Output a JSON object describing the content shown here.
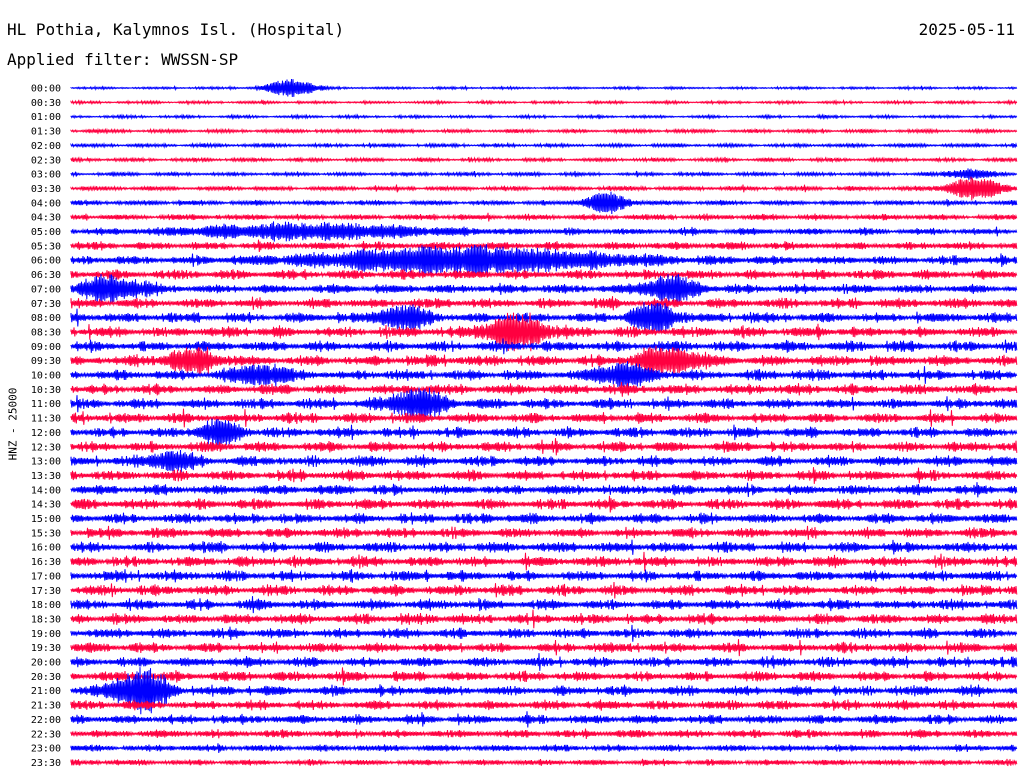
{
  "header": {
    "station": "HL Pothia, Kalymnos Isl. (Hospital)",
    "date": "2025-05-11",
    "filter": "Applied filter: WWSSN-SP"
  },
  "colors": {
    "even_trace": "#0000ff",
    "odd_trace": "#ff0040",
    "text": "#000000",
    "background": "#ffffff"
  },
  "chart_data": {
    "type": "line",
    "ylabel": "HNZ - 25000",
    "row_labels": [
      "00:00",
      "00:30",
      "01:00",
      "01:30",
      "02:00",
      "02:30",
      "03:00",
      "03:30",
      "04:00",
      "04:30",
      "05:00",
      "05:30",
      "06:00",
      "06:30",
      "07:00",
      "07:30",
      "08:00",
      "08:30",
      "09:00",
      "09:30",
      "10:00",
      "10:30",
      "11:00",
      "11:30",
      "12:00",
      "12:30",
      "13:00",
      "13:30",
      "14:00",
      "14:30",
      "15:00",
      "15:30",
      "16:00",
      "16:30",
      "17:00",
      "17:30",
      "18:00",
      "18:30",
      "19:00",
      "19:30",
      "20:00",
      "20:30",
      "21:00",
      "21:30",
      "22:00",
      "22:30",
      "23:00",
      "23:30"
    ],
    "x_range_minutes": [
      0,
      30
    ],
    "noise_level": [
      1.0,
      1.2,
      1.2,
      1.6,
      1.6,
      1.6,
      1.6,
      2.0,
      2.2,
      2.6,
      3.0,
      3.6,
      3.8,
      4.2,
      4.2,
      4.4,
      4.4,
      4.6,
      4.6,
      4.8,
      4.6,
      4.6,
      4.6,
      4.6,
      4.4,
      4.6,
      4.6,
      4.6,
      4.6,
      4.6,
      4.6,
      4.6,
      4.6,
      4.6,
      4.6,
      4.6,
      4.6,
      4.6,
      4.4,
      4.4,
      4.4,
      4.4,
      4.4,
      4.2,
      4.2,
      3.6,
      3.0,
      2.6
    ],
    "events": [
      {
        "row": 0,
        "minute": 7.0,
        "amplitude": 9,
        "duration": 0.9
      },
      {
        "row": 6,
        "minute": 28.5,
        "amplitude": 5,
        "duration": 0.8
      },
      {
        "row": 7,
        "minute": 28.7,
        "amplitude": 11,
        "duration": 1.0
      },
      {
        "row": 8,
        "minute": 17.0,
        "amplitude": 9,
        "duration": 0.8
      },
      {
        "row": 10,
        "minute": 7.5,
        "amplitude": 7,
        "duration": 4.5
      },
      {
        "row": 12,
        "minute": 12.5,
        "amplitude": 12,
        "duration": 5.5
      },
      {
        "row": 14,
        "minute": 1.3,
        "amplitude": 12,
        "duration": 1.2
      },
      {
        "row": 14,
        "minute": 19.0,
        "amplitude": 12,
        "duration": 1.0
      },
      {
        "row": 16,
        "minute": 10.5,
        "amplitude": 11,
        "duration": 0.9
      },
      {
        "row": 16,
        "minute": 18.5,
        "amplitude": 14,
        "duration": 0.8
      },
      {
        "row": 17,
        "minute": 14.1,
        "amplitude": 15,
        "duration": 1.2
      },
      {
        "row": 19,
        "minute": 3.8,
        "amplitude": 10,
        "duration": 1.0
      },
      {
        "row": 19,
        "minute": 19.0,
        "amplitude": 12,
        "duration": 1.2
      },
      {
        "row": 20,
        "minute": 6.0,
        "amplitude": 9,
        "duration": 1.0
      },
      {
        "row": 20,
        "minute": 17.5,
        "amplitude": 10,
        "duration": 1.1
      },
      {
        "row": 22,
        "minute": 11.0,
        "amplitude": 14,
        "duration": 1.0
      },
      {
        "row": 24,
        "minute": 4.7,
        "amplitude": 10,
        "duration": 0.8
      },
      {
        "row": 26,
        "minute": 3.2,
        "amplitude": 9,
        "duration": 0.8
      },
      {
        "row": 42,
        "minute": 2.2,
        "amplitude": 20,
        "duration": 1.0
      }
    ]
  }
}
